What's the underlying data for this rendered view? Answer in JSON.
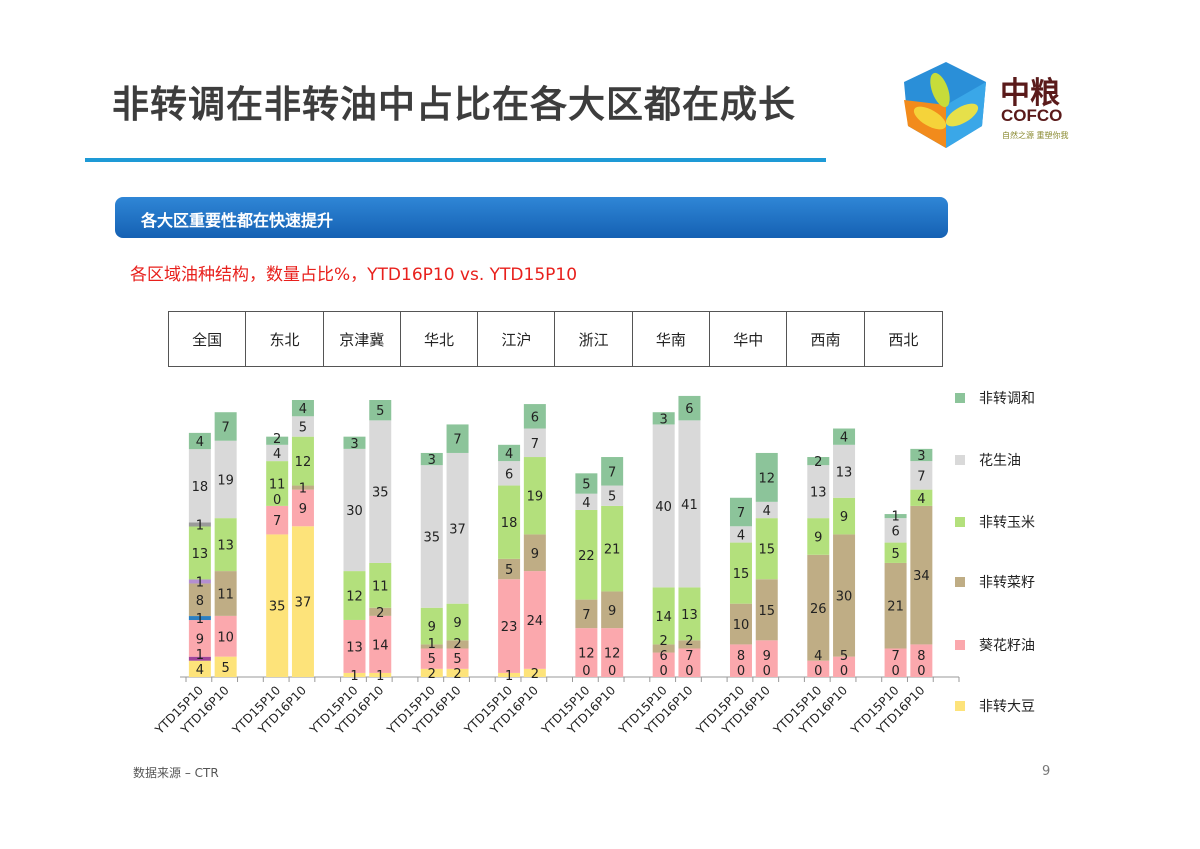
{
  "title": "非转调在非转油中占比在各大区都在成长",
  "logo": {
    "cn": "中粮",
    "en": "COFCO",
    "tagline": "自然之源 重塑你我"
  },
  "banner": "各大区重要性都在快速提升",
  "colors": {
    "accent": "#1e9ad6",
    "banner": "#1f6fc0",
    "subtitle": "#e8201c"
  },
  "source": "数据来源 – CTR",
  "page_number": "9",
  "chart_data": {
    "type": "bar",
    "stacked": true,
    "title": "各区域油种结构，数量占比%，YTD16P10 vs. YTD15P10",
    "groups": [
      "全国",
      "东北",
      "京津冀",
      "华北",
      "江沪",
      "浙江",
      "华南",
      "华中",
      "西南",
      "西北"
    ],
    "categories": [
      "YTD15P10",
      "YTD16P10"
    ],
    "ylim": [
      0,
      70
    ],
    "grid": false,
    "legend_position": "right",
    "series": [
      {
        "name": "非转大豆",
        "color": "#fde37a",
        "values": [
          [
            4,
            5
          ],
          [
            35,
            37
          ],
          [
            1,
            1
          ],
          [
            2,
            2
          ],
          [
            1,
            2
          ],
          [
            0,
            0
          ],
          [
            0,
            0
          ],
          [
            0,
            0
          ],
          [
            0,
            0
          ],
          [
            0,
            0
          ]
        ]
      },
      {
        "color": "#a0449a",
        "values": [
          [
            1,
            0
          ],
          [
            0,
            0
          ],
          [
            0,
            0
          ],
          [
            0,
            0
          ],
          [
            0,
            0
          ],
          [
            0,
            0
          ],
          [
            0,
            0
          ],
          [
            0,
            0
          ],
          [
            0,
            0
          ],
          [
            0,
            0
          ]
        ]
      },
      {
        "name": "葵花籽油",
        "color": "#fba8ad",
        "values": [
          [
            9,
            10
          ],
          [
            7,
            9
          ],
          [
            13,
            14
          ],
          [
            5,
            5
          ],
          [
            23,
            24
          ],
          [
            12,
            12
          ],
          [
            6,
            7
          ],
          [
            8,
            9
          ],
          [
            4,
            5
          ],
          [
            7,
            8
          ]
        ]
      },
      {
        "color": "#2c7fc1",
        "values": [
          [
            1,
            0
          ],
          [
            0,
            0
          ],
          [
            0,
            0
          ],
          [
            0,
            0
          ],
          [
            0,
            0
          ],
          [
            0,
            0
          ],
          [
            0,
            0
          ],
          [
            0,
            0
          ],
          [
            0,
            0
          ],
          [
            0,
            0
          ]
        ]
      },
      {
        "name": "非转菜籽",
        "color": "#bfad85",
        "values": [
          [
            8,
            11
          ],
          [
            0,
            1
          ],
          [
            0,
            2
          ],
          [
            1,
            2
          ],
          [
            5,
            9
          ],
          [
            7,
            9
          ],
          [
            2,
            2
          ],
          [
            10,
            15
          ],
          [
            26,
            30
          ],
          [
            21,
            34
          ]
        ]
      },
      {
        "color": "#b48fd0",
        "values": [
          [
            1,
            0
          ],
          [
            0,
            0
          ],
          [
            0,
            0
          ],
          [
            0,
            0
          ],
          [
            0,
            0
          ],
          [
            0,
            0
          ],
          [
            0,
            0
          ],
          [
            0,
            0
          ],
          [
            0,
            0
          ],
          [
            0,
            0
          ]
        ]
      },
      {
        "name": "非转玉米",
        "color": "#b3e07c",
        "values": [
          [
            13,
            13
          ],
          [
            11,
            12
          ],
          [
            12,
            11
          ],
          [
            9,
            9
          ],
          [
            18,
            19
          ],
          [
            22,
            21
          ],
          [
            14,
            13
          ],
          [
            15,
            15
          ],
          [
            9,
            9
          ],
          [
            5,
            4
          ]
        ]
      },
      {
        "color": "#9a9a9a",
        "values": [
          [
            1,
            0
          ],
          [
            0,
            0
          ],
          [
            0,
            0
          ],
          [
            0,
            0
          ],
          [
            0,
            0
          ],
          [
            0,
            0
          ],
          [
            0,
            0
          ],
          [
            0,
            0
          ],
          [
            0,
            0
          ],
          [
            0,
            0
          ]
        ]
      },
      {
        "name": "花生油",
        "color": "#d9d9d9",
        "values": [
          [
            18,
            19
          ],
          [
            4,
            5
          ],
          [
            30,
            35
          ],
          [
            35,
            37
          ],
          [
            6,
            7
          ],
          [
            4,
            5
          ],
          [
            40,
            41
          ],
          [
            4,
            4
          ],
          [
            13,
            13
          ],
          [
            6,
            7
          ]
        ]
      },
      {
        "name": "非转调和",
        "color": "#8cc49a",
        "values": [
          [
            4,
            7
          ],
          [
            2,
            4
          ],
          [
            3,
            5
          ],
          [
            3,
            7
          ],
          [
            4,
            6
          ],
          [
            5,
            7
          ],
          [
            3,
            6
          ],
          [
            7,
            12
          ],
          [
            2,
            4
          ],
          [
            1,
            3
          ]
        ]
      }
    ]
  }
}
